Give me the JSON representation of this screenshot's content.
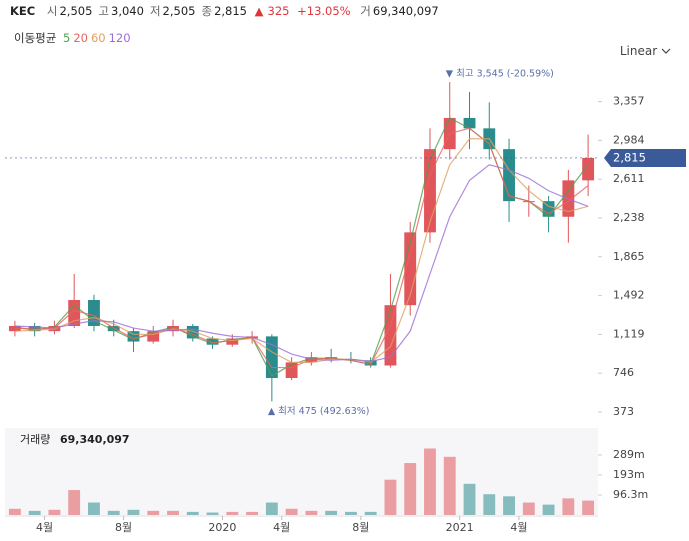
{
  "header": {
    "name": "KEC",
    "items": [
      {
        "key": "시",
        "value": "2,505"
      },
      {
        "key": "고",
        "value": "3,040"
      },
      {
        "key": "저",
        "value": "2,505"
      },
      {
        "key": "종",
        "value": "2,815"
      }
    ],
    "change_symbol": "▲",
    "change": "325",
    "change_pct": "+13.05%",
    "volume_key": "거",
    "volume": "69,340,097"
  },
  "ma_label": "이동평균",
  "scale_button": "Linear",
  "chart_data": [
    {
      "type": "candlestick",
      "up_color": "#e0565b",
      "down_color": "#2a8c8c",
      "categories": [
        null,
        null,
        "4월",
        null,
        null,
        null,
        "8월",
        null,
        null,
        null,
        null,
        "2020",
        null,
        null,
        "4월",
        null,
        null,
        null,
        "8월",
        null,
        null,
        null,
        null,
        "2021",
        null,
        null,
        "4월",
        null,
        null,
        null
      ],
      "open": [
        1150,
        1200,
        1150,
        1200,
        1450,
        1200,
        1150,
        1050,
        1150,
        1200,
        1080,
        1020,
        1080,
        1100,
        700,
        850,
        900,
        880,
        870,
        820,
        1400,
        2100,
        2900,
        3200,
        3100,
        2900,
        2400,
        2400,
        2250,
        2600
      ],
      "high": [
        1250,
        1230,
        1250,
        1700,
        1500,
        1260,
        1180,
        1200,
        1260,
        1220,
        1100,
        1120,
        1150,
        1120,
        900,
        950,
        980,
        950,
        900,
        1700,
        2200,
        3100,
        3545,
        3450,
        3350,
        3000,
        2550,
        2450,
        2700,
        3040
      ],
      "low": [
        1100,
        1100,
        1120,
        1180,
        1150,
        1100,
        950,
        1030,
        1100,
        1050,
        980,
        1000,
        1030,
        475,
        680,
        820,
        850,
        840,
        800,
        800,
        1300,
        2000,
        2800,
        2900,
        2800,
        2200,
        2250,
        2100,
        2000,
        2450
      ],
      "close": [
        1200,
        1150,
        1200,
        1450,
        1200,
        1150,
        1050,
        1150,
        1200,
        1080,
        1020,
        1080,
        1100,
        700,
        850,
        900,
        880,
        870,
        820,
        1400,
        2100,
        2900,
        3200,
        3100,
        2900,
        2400,
        2400,
        2250,
        2600,
        2815
      ],
      "series": [
        {
          "name": "5",
          "color": "#4f9f4f",
          "values": [
            1190,
            1160,
            1190,
            1400,
            1250,
            1160,
            1070,
            1140,
            1190,
            1100,
            1030,
            1070,
            1090,
            720,
            830,
            890,
            890,
            870,
            830,
            1350,
            2000,
            2800,
            3200,
            3100,
            2950,
            2450,
            2400,
            2250,
            2500,
            2750
          ]
        },
        {
          "name": "20",
          "color": "#e8635a",
          "values": [
            1180,
            1170,
            1180,
            1350,
            1300,
            1180,
            1080,
            1120,
            1180,
            1120,
            1040,
            1060,
            1090,
            800,
            800,
            880,
            890,
            870,
            830,
            1200,
            1900,
            2650,
            3050,
            3100,
            2950,
            2450,
            2400,
            2280,
            2400,
            2550
          ]
        },
        {
          "name": "60",
          "color": "#e0a060",
          "values": [
            1150,
            1160,
            1170,
            1250,
            1280,
            1220,
            1120,
            1120,
            1170,
            1150,
            1080,
            1060,
            1080,
            950,
            850,
            850,
            880,
            880,
            850,
            1000,
            1500,
            2200,
            2750,
            3000,
            3000,
            2700,
            2500,
            2350,
            2300,
            2350
          ]
        },
        {
          "name": "120",
          "color": "#9b6fd6",
          "values": [
            1200,
            1190,
            1180,
            1220,
            1250,
            1240,
            1180,
            1150,
            1160,
            1170,
            1130,
            1100,
            1090,
            1020,
            930,
            880,
            870,
            880,
            860,
            900,
            1150,
            1700,
            2250,
            2600,
            2750,
            2700,
            2620,
            2500,
            2420,
            2350
          ]
        }
      ],
      "ylim": [
        248,
        3757
      ],
      "yticks": [
        {
          "value": 373,
          "label": "373"
        },
        {
          "value": 746,
          "label": "746"
        },
        {
          "value": 1119,
          "label": "1,119"
        },
        {
          "value": 1492,
          "label": "1,492"
        },
        {
          "value": 1865,
          "label": "1,865"
        },
        {
          "value": 2238,
          "label": "2,238"
        },
        {
          "value": 2611,
          "label": "2,611"
        },
        {
          "value": 2984,
          "label": "2,984"
        },
        {
          "value": 3357,
          "label": "3,357"
        }
      ],
      "high_annotation": "▼ 최고 3,545 (-20.59%)",
      "low_annotation": "▲ 최저 475 (492.63%)",
      "last_price": {
        "value": 2815,
        "label": "2,815"
      }
    },
    {
      "type": "bar",
      "title": "거래량",
      "subtitle": "69,340,097",
      "values": [
        30000000,
        20000000,
        25000000,
        120000000,
        60000000,
        20000000,
        25000000,
        20000000,
        20000000,
        15000000,
        12000000,
        15000000,
        15000000,
        60000000,
        30000000,
        20000000,
        20000000,
        15000000,
        15000000,
        170000000,
        250000000,
        320000000,
        280000000,
        150000000,
        100000000,
        90000000,
        60000000,
        50000000,
        80000000,
        69340097
      ],
      "ylim": [
        0,
        409000000
      ],
      "yticks": [
        {
          "value": 96300000,
          "label": "96.3m"
        },
        {
          "value": 193000000,
          "label": "193m"
        },
        {
          "value": 289000000,
          "label": "289m"
        }
      ]
    }
  ]
}
